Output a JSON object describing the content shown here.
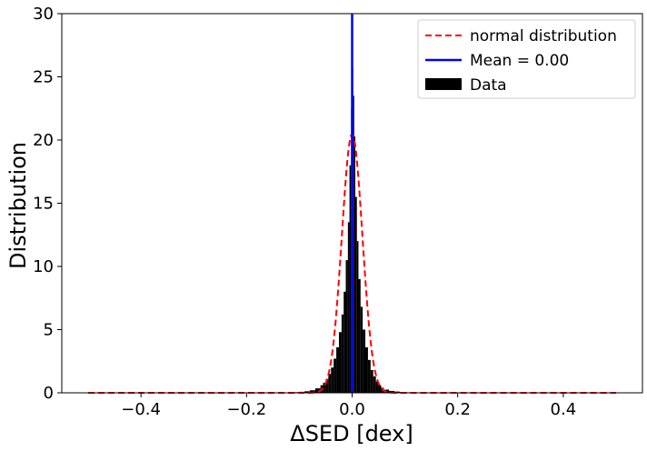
{
  "chart_data": {
    "type": "bar",
    "title": "",
    "xlabel": "ΔSED [dex]",
    "ylabel": "Distribution",
    "xlim": [
      -0.55,
      0.55
    ],
    "ylim": [
      0,
      30
    ],
    "xticks": [
      -0.4,
      -0.2,
      0.0,
      0.2,
      0.4
    ],
    "xtick_labels": [
      "−0.4",
      "−0.2",
      "0.0",
      "0.2",
      "0.4"
    ],
    "yticks": [
      0,
      5,
      10,
      15,
      20,
      25,
      30
    ],
    "ytick_labels": [
      "0",
      "5",
      "10",
      "15",
      "20",
      "25",
      "30"
    ],
    "grid": false,
    "legend_position": "top-right",
    "legend": [
      {
        "label": "normal distribution",
        "style": "dashed-line",
        "color": "#ff0000"
      },
      {
        "label": "Mean = 0.00",
        "style": "line",
        "color": "#0000ff"
      },
      {
        "label": "Data",
        "style": "patch",
        "color": "#000000"
      }
    ],
    "series": [
      {
        "name": "Data",
        "kind": "histogram",
        "color": "#000000",
        "bins": [
          {
            "x0": -0.11,
            "x1": -0.1,
            "value": 0.05
          },
          {
            "x0": -0.1,
            "x1": -0.09,
            "value": 0.08
          },
          {
            "x0": -0.09,
            "x1": -0.08,
            "value": 0.12
          },
          {
            "x0": -0.08,
            "x1": -0.07,
            "value": 0.2
          },
          {
            "x0": -0.07,
            "x1": -0.06,
            "value": 0.35
          },
          {
            "x0": -0.06,
            "x1": -0.055,
            "value": 0.6
          },
          {
            "x0": -0.055,
            "x1": -0.05,
            "value": 0.8
          },
          {
            "x0": -0.05,
            "x1": -0.045,
            "value": 1.1
          },
          {
            "x0": -0.045,
            "x1": -0.04,
            "value": 1.5
          },
          {
            "x0": -0.04,
            "x1": -0.035,
            "value": 2.0
          },
          {
            "x0": -0.035,
            "x1": -0.03,
            "value": 2.7
          },
          {
            "x0": -0.03,
            "x1": -0.025,
            "value": 3.6
          },
          {
            "x0": -0.025,
            "x1": -0.02,
            "value": 4.8
          },
          {
            "x0": -0.02,
            "x1": -0.016,
            "value": 6.2
          },
          {
            "x0": -0.016,
            "x1": -0.012,
            "value": 8.0
          },
          {
            "x0": -0.012,
            "x1": -0.008,
            "value": 10.5
          },
          {
            "x0": -0.008,
            "x1": -0.005,
            "value": 13.5
          },
          {
            "x0": -0.005,
            "x1": -0.002,
            "value": 18.0
          },
          {
            "x0": -0.002,
            "x1": 0.0,
            "value": 22.5
          },
          {
            "x0": 0.0,
            "x1": 0.002,
            "value": 25.7
          },
          {
            "x0": 0.002,
            "x1": 0.004,
            "value": 23.5
          },
          {
            "x0": 0.004,
            "x1": 0.006,
            "value": 20.3
          },
          {
            "x0": 0.006,
            "x1": 0.009,
            "value": 15.5
          },
          {
            "x0": 0.009,
            "x1": 0.012,
            "value": 12.0
          },
          {
            "x0": 0.012,
            "x1": 0.016,
            "value": 9.0
          },
          {
            "x0": 0.016,
            "x1": 0.02,
            "value": 6.8
          },
          {
            "x0": 0.02,
            "x1": 0.025,
            "value": 5.0
          },
          {
            "x0": 0.025,
            "x1": 0.03,
            "value": 3.6
          },
          {
            "x0": 0.03,
            "x1": 0.035,
            "value": 2.6
          },
          {
            "x0": 0.035,
            "x1": 0.04,
            "value": 1.8
          },
          {
            "x0": 0.04,
            "x1": 0.045,
            "value": 1.3
          },
          {
            "x0": 0.045,
            "x1": 0.05,
            "value": 0.9
          },
          {
            "x0": 0.05,
            "x1": 0.055,
            "value": 0.6
          },
          {
            "x0": 0.055,
            "x1": 0.06,
            "value": 0.4
          },
          {
            "x0": 0.06,
            "x1": 0.07,
            "value": 0.25
          },
          {
            "x0": 0.07,
            "x1": 0.08,
            "value": 0.15
          },
          {
            "x0": 0.08,
            "x1": 0.09,
            "value": 0.1
          },
          {
            "x0": 0.09,
            "x1": 0.1,
            "value": 0.06
          },
          {
            "x0": 0.1,
            "x1": 0.12,
            "value": 0.04
          }
        ]
      },
      {
        "name": "normal distribution",
        "kind": "gaussian-curve",
        "color": "#ff0000",
        "mean": 0.0,
        "sigma": 0.0195,
        "x_range": [
          -0.5,
          0.5
        ]
      },
      {
        "name": "Mean = 0.00",
        "kind": "vertical-line",
        "color": "#0000ff",
        "x": 0.0
      }
    ]
  }
}
